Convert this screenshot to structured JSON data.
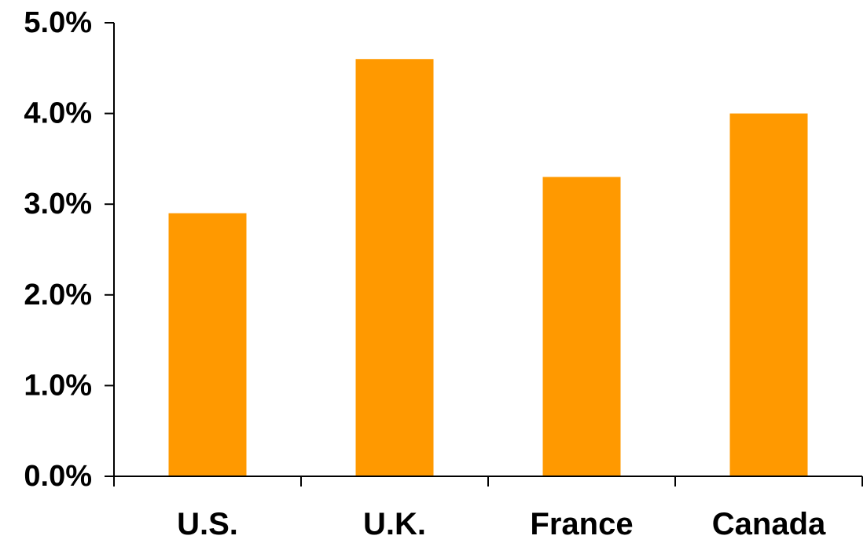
{
  "chart_data": {
    "type": "bar",
    "title": "",
    "xlabel": "",
    "ylabel": "",
    "categories": [
      "U.S.",
      "U.K.",
      "France",
      "Canada"
    ],
    "values": [
      2.9,
      4.6,
      3.3,
      4.0
    ],
    "unit": "%",
    "ylim": [
      0,
      5
    ],
    "yticks": [
      0,
      1,
      2,
      3,
      4,
      5
    ],
    "ytick_labels": [
      "0.0%",
      "1.0%",
      "2.0%",
      "3.0%",
      "4.0%",
      "5.0%"
    ],
    "grid": false,
    "legend": "none",
    "bar_color": "#FF9900"
  }
}
